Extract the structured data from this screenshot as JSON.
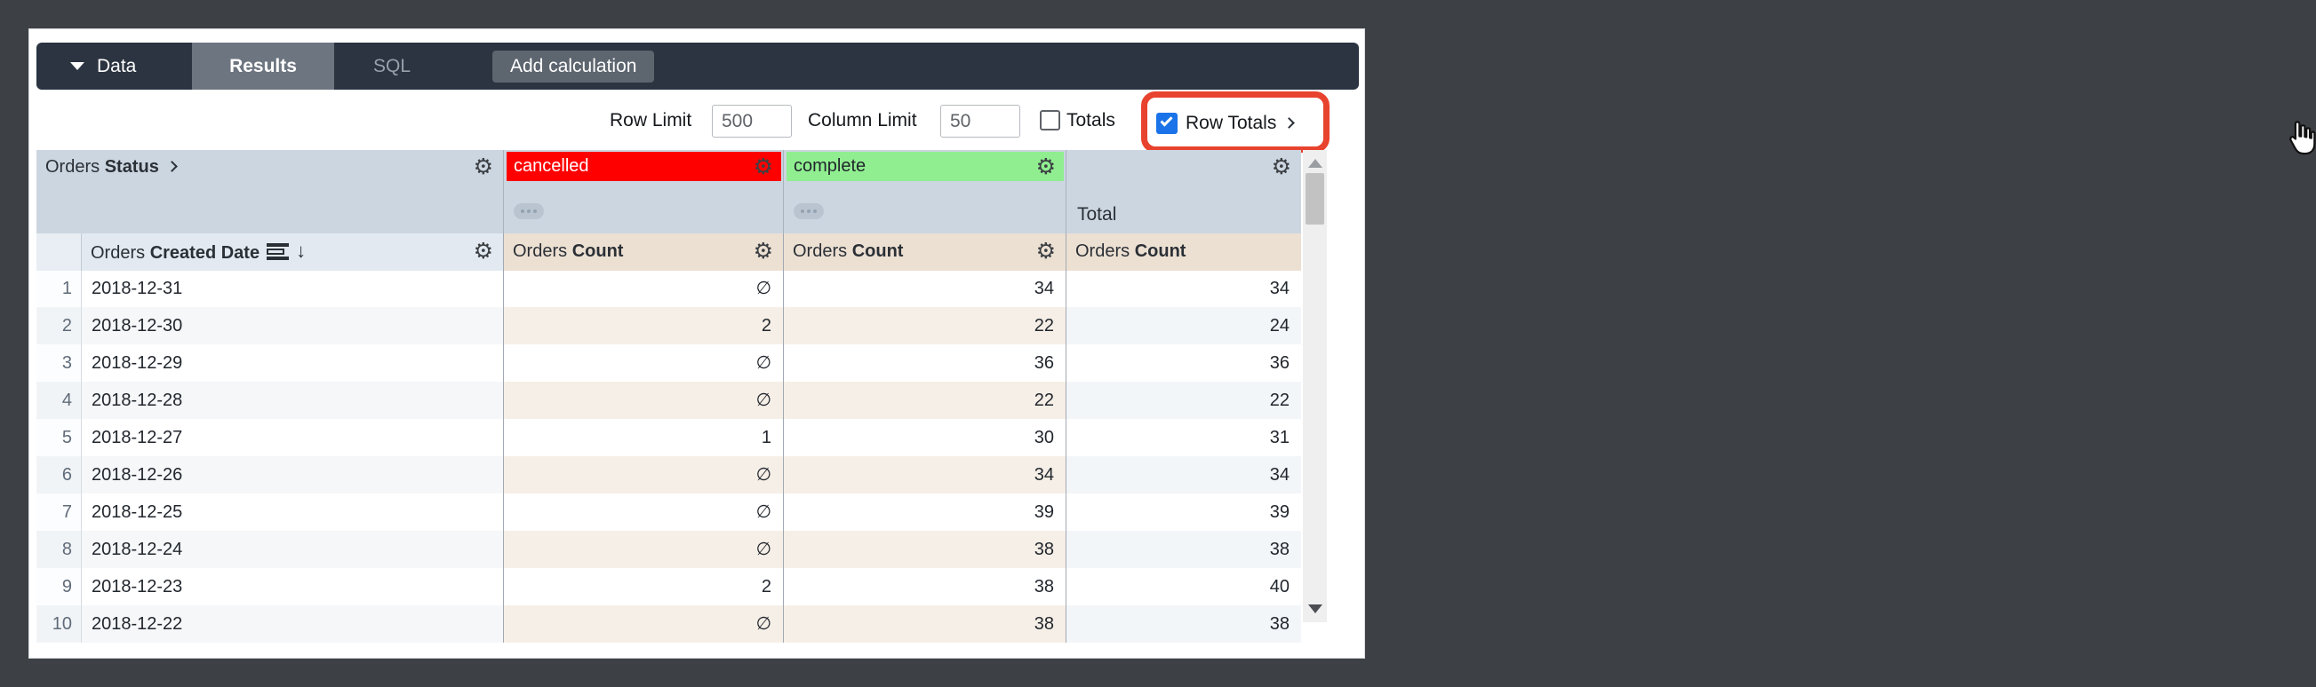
{
  "tabs": {
    "data_label": "Data",
    "results_label": "Results",
    "sql_label": "SQL",
    "add_calculation_label": "Add calculation"
  },
  "controls": {
    "row_limit_label": "Row Limit",
    "row_limit_value": "500",
    "column_limit_label": "Column Limit",
    "column_limit_value": "50",
    "totals_label": "Totals",
    "row_totals_label": "Row Totals",
    "totals_checked": false,
    "row_totals_checked": true
  },
  "colors": {
    "accent_blue": "#1a73e8",
    "highlight_red": "#e8432e",
    "pivot_cancelled_bg": "#ff0000",
    "pivot_cancelled_fg": "#ffffff",
    "pivot_complete_bg": "#90ee90",
    "pivot_complete_fg": "#1f242b"
  },
  "table": {
    "field_prefix": "Orders",
    "pivot_field_name": "Status",
    "dimension_name": "Created Date",
    "measure_name": "Count",
    "total_label": "Total",
    "pivot_values": [
      {
        "label": "cancelled"
      },
      {
        "label": "complete"
      }
    ],
    "rows": [
      {
        "idx": "1",
        "date": "2018-12-31",
        "cancelled": "∅",
        "complete": "34",
        "total": "34"
      },
      {
        "idx": "2",
        "date": "2018-12-30",
        "cancelled": "2",
        "complete": "22",
        "total": "24"
      },
      {
        "idx": "3",
        "date": "2018-12-29",
        "cancelled": "∅",
        "complete": "36",
        "total": "36"
      },
      {
        "idx": "4",
        "date": "2018-12-28",
        "cancelled": "∅",
        "complete": "22",
        "total": "22"
      },
      {
        "idx": "5",
        "date": "2018-12-27",
        "cancelled": "1",
        "complete": "30",
        "total": "31"
      },
      {
        "idx": "6",
        "date": "2018-12-26",
        "cancelled": "∅",
        "complete": "34",
        "total": "34"
      },
      {
        "idx": "7",
        "date": "2018-12-25",
        "cancelled": "∅",
        "complete": "39",
        "total": "39"
      },
      {
        "idx": "8",
        "date": "2018-12-24",
        "cancelled": "∅",
        "complete": "38",
        "total": "38"
      },
      {
        "idx": "9",
        "date": "2018-12-23",
        "cancelled": "2",
        "complete": "38",
        "total": "40"
      }
    ],
    "partial_row": {
      "idx": "10",
      "date": "2018-12-22",
      "cancelled": "∅",
      "complete": "38",
      "total": "38"
    }
  }
}
